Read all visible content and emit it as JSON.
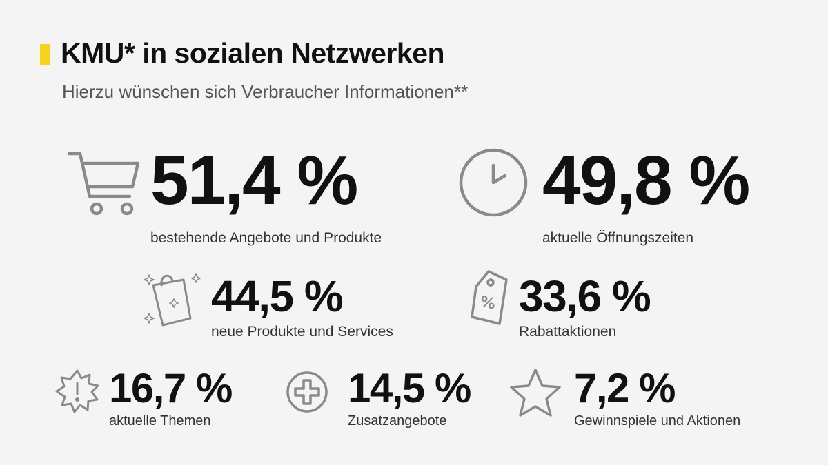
{
  "header": {
    "title": "KMU* in sozialen Netzwerken",
    "subtitle": "Hierzu wünschen sich Verbraucher Informationen**",
    "accent_color": "#f7d419"
  },
  "stats": [
    {
      "value": "51,4 %",
      "label": "bestehende Angebote und Produkte",
      "icon": "shopping-cart-icon"
    },
    {
      "value": "49,8 %",
      "label": "aktuelle Öffnungszeiten",
      "icon": "clock-icon"
    },
    {
      "value": "44,5 %",
      "label": "neue Produkte und Services",
      "icon": "shopping-bag-sparkle-icon"
    },
    {
      "value": "33,6 %",
      "label": "Rabattaktionen",
      "icon": "price-tag-percent-icon"
    },
    {
      "value": "16,7 %",
      "label": "aktuelle Themen",
      "icon": "exclamation-burst-icon"
    },
    {
      "value": "14,5 %",
      "label": "Zusatzangebote",
      "icon": "plus-circle-icon"
    },
    {
      "value": "7,2 %",
      "label": "Gewinnspiele und Aktionen",
      "icon": "star-icon"
    }
  ],
  "colors": {
    "icon_stroke": "#8a8a8a",
    "background": "#f4f4f4"
  }
}
